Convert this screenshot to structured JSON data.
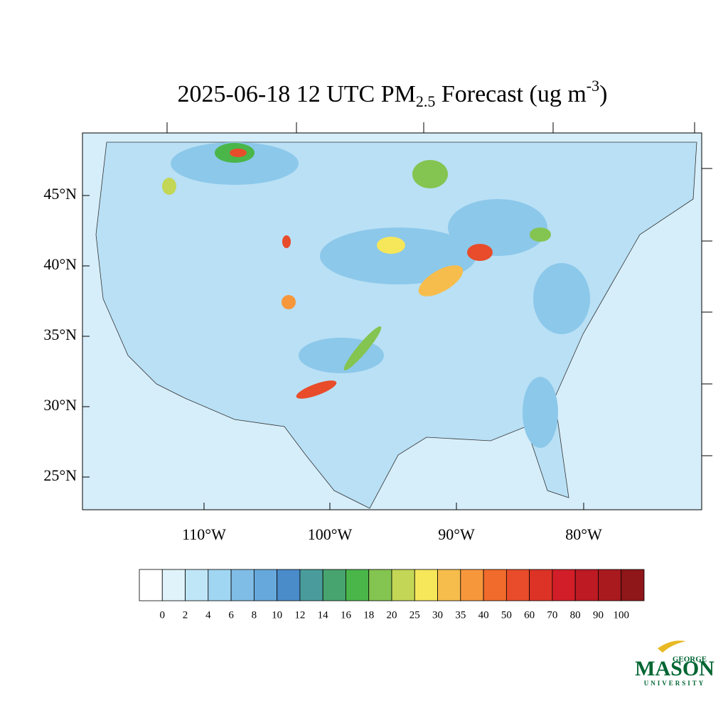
{
  "title": {
    "part1": "2025-06-18 12 UTC PM",
    "subscript": "2.5",
    "part2": " Forecast (ug m",
    "superscript": "-3",
    "part3": ")"
  },
  "lat_labels": [
    "45°N",
    "40°N",
    "35°N",
    "30°N",
    "25°N"
  ],
  "lon_labels": [
    "110°W",
    "100°W",
    "90°W",
    "80°W"
  ],
  "colorbar": {
    "levels": [
      0,
      2,
      4,
      6,
      8,
      10,
      12,
      14,
      16,
      18,
      20,
      25,
      30,
      35,
      40,
      50,
      60,
      70,
      80,
      90,
      100
    ],
    "colors": [
      "#ffffff",
      "#e0f3fb",
      "#bfe6f7",
      "#a0d6f2",
      "#80bde6",
      "#66a8dc",
      "#4a8bc9",
      "#4a9c9c",
      "#48a46e",
      "#4ab64a",
      "#84c450",
      "#c3d655",
      "#f6e65a",
      "#f7bd4c",
      "#f7973c",
      "#f16b2c",
      "#e84c2a",
      "#dc3326",
      "#d21e28",
      "#bd1a24",
      "#a81a1e",
      "#8f1619"
    ]
  },
  "logo": {
    "top": "GEORGE",
    "main": "MASON",
    "bottom": "UNIVERSITY"
  }
}
